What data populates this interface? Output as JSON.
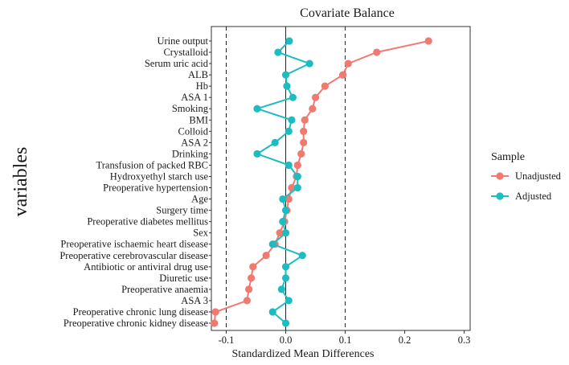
{
  "chart_data": {
    "type": "scatter",
    "title": "Covariate Balance",
    "xlabel": "Standardized Mean Differences",
    "ylabel": "variables",
    "xlim": [
      -0.125,
      0.31
    ],
    "xticks": [
      -0.1,
      0.0,
      0.1,
      0.2,
      0.3
    ],
    "xtick_labels": [
      "-0.1",
      "0.0",
      "0.1",
      "0.2",
      "0.3"
    ],
    "reference_lines": [
      {
        "value": 0.0,
        "style": "solid"
      },
      {
        "value": -0.1,
        "style": "dashed"
      },
      {
        "value": 0.1,
        "style": "dashed"
      }
    ],
    "legend": {
      "title": "Sample",
      "position": "right"
    },
    "categories": [
      "Urine output",
      "Crystalloid",
      "Serum uric acid",
      "ALB",
      "Hb",
      "ASA 1",
      "Smoking",
      "BMI",
      "Colloid",
      "ASA 2",
      "Drinking",
      "Transfusion of packed RBC",
      "Hydroxyethyl starch use",
      "Preoperative hypertension",
      "Age",
      "Surgery time",
      "Preoperative diabetes mellitus",
      "Sex",
      "Preoperative ischaemic heart disease",
      "Preoperative cerebrovascular disease",
      "Antibiotic or antiviral drug use",
      "Diuretic use",
      "Preoperative anaemia",
      "ASA 3",
      "Preoperative chronic lung disease",
      "Preoperative chronic kidney disease"
    ],
    "series": [
      {
        "name": "Unadjusted",
        "color": "#f07a6f",
        "values": [
          0.24,
          0.153,
          0.105,
          0.096,
          0.066,
          0.05,
          0.045,
          0.032,
          0.03,
          0.03,
          0.026,
          0.02,
          0.018,
          0.01,
          0.005,
          0.002,
          -0.002,
          -0.01,
          -0.018,
          -0.033,
          -0.055,
          -0.058,
          -0.062,
          -0.065,
          -0.118,
          -0.12
        ]
      },
      {
        "name": "Adjusted",
        "color": "#1cbdc2",
        "values": [
          0.006,
          -0.013,
          0.04,
          0.0,
          0.002,
          0.012,
          -0.048,
          0.01,
          0.005,
          -0.018,
          -0.048,
          0.005,
          0.02,
          0.02,
          -0.005,
          0.0,
          -0.005,
          0.0,
          -0.022,
          0.028,
          0.0,
          0.0,
          -0.007,
          0.005,
          -0.022,
          0.0
        ]
      }
    ]
  }
}
